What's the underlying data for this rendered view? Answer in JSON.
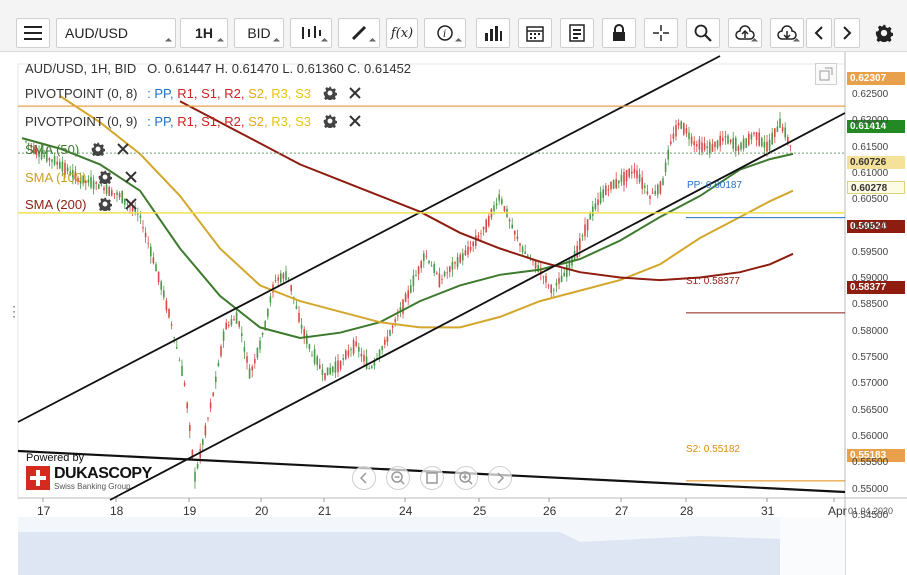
{
  "toolbar": {
    "symbol": "AUD/USD",
    "timeframe": "1H",
    "price_side": "BID"
  },
  "ohlc": {
    "header": "AUD/USD, 1H, BID",
    "open_label": "O.",
    "open": "0.61447",
    "high_label": "H.",
    "high": "0.61470",
    "low_label": "L.",
    "low": "0.61360",
    "close_label": "C.",
    "close": "0.61452"
  },
  "legend": {
    "pivot1": {
      "name": "PIVOTPOINT (0, 8)",
      "sep": ":",
      "pp": "PP,",
      "r1": "R1,",
      "s1": "S1,",
      "r2": "R2,",
      "s2": "S2,",
      "r3": "R3,",
      "s3": "S3"
    },
    "pivot2": {
      "name": "PIVOTPOINT (0, 9)",
      "sep": ":",
      "pp": "PP,",
      "r1": "R1,",
      "s1": "S1,",
      "r2": "R2,",
      "s2": "S2,",
      "r3": "R3,",
      "s3": "S3"
    },
    "sma50": "SMA (50)",
    "sma100": "SMA (100)",
    "sma200": "SMA (200)"
  },
  "colors": {
    "sma50": "#3d7a2e",
    "sma100": "#d4a72c",
    "sma200": "#8e1c0f",
    "pp": "#1e70c8",
    "r_levels": "#cc2222",
    "s_levels": "#e8a90e",
    "candle": "#4a9a4a",
    "candle_down": "#d84a4a"
  },
  "price_tags": [
    {
      "value": "0.62307",
      "color": "#e8a14a"
    },
    {
      "value": "0.61414",
      "color": "#238a23"
    },
    {
      "value": "0.60726",
      "color": "#f5e19a"
    },
    {
      "value": "0.60278",
      "color": "#fdfbe3"
    },
    {
      "value": "0.59524",
      "color": "#8e1c0f"
    },
    {
      "value": "0.58377",
      "color": "#8e1c0f"
    },
    {
      "value": "0.55183",
      "color": "#e8a14a"
    }
  ],
  "pivot_labels": {
    "pp": "PP: 0.60187",
    "s1": "S1: 0.58377",
    "s2": "S2: 0.55182"
  },
  "y_ticks": [
    "0.62500",
    "0.62000",
    "0.61500",
    "0.61000",
    "0.60500",
    "0.60000",
    "0.59500",
    "0.59000",
    "0.58500",
    "0.58000",
    "0.57500",
    "0.57000",
    "0.56500",
    "0.56000",
    "0.55500",
    "0.55000",
    "0.54500"
  ],
  "x_ticks": [
    "17",
    "18",
    "19",
    "20",
    "21",
    "24",
    "25",
    "26",
    "27",
    "28",
    "31",
    "Apr"
  ],
  "date_label": "01.04.2020",
  "branding": {
    "powered_by": "Powered by",
    "name": "DUKASCOPY",
    "tagline": "Swiss Banking Group"
  }
}
